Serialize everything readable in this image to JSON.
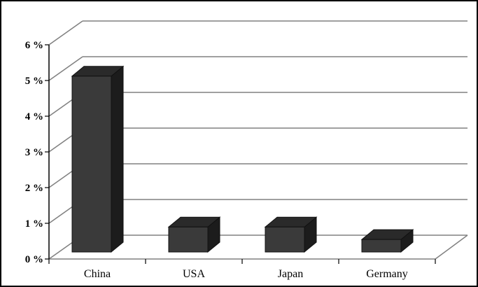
{
  "chart_data": {
    "type": "bar",
    "categories": [
      "China",
      "USA",
      "Japan",
      "Germany"
    ],
    "values": [
      5.2,
      0.7,
      0.7,
      0.35
    ],
    "title": "",
    "xlabel": "",
    "ylabel": "",
    "ylim": [
      0,
      6
    ],
    "y_ticks": [
      "0 %",
      "1 %",
      "2 %",
      "3 %",
      "4 %",
      "5 %",
      "6 %"
    ],
    "grid": true,
    "legend": "none",
    "style": "3d-column",
    "colors": {
      "bar_front": "#3a3a3a",
      "bar_top": "#2a2a2a",
      "bar_side": "#1c1c1c",
      "grid": "#808080",
      "axis": "#000000"
    }
  }
}
